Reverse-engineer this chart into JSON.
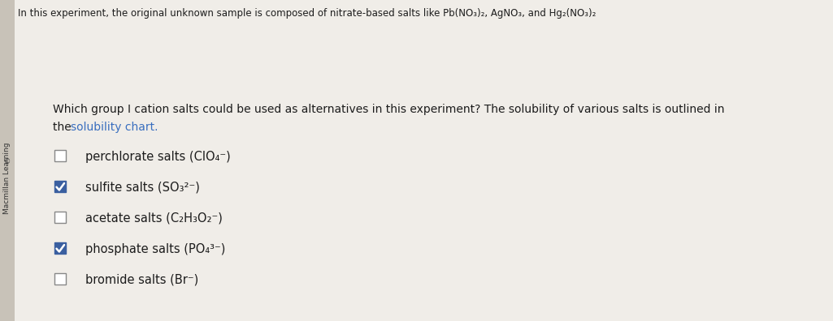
{
  "background_color": "#f0ede8",
  "sidebar_bg": "#c8c2b8",
  "sidebar_text": "Macmillan Learning",
  "top_text": "In this experiment, the original unknown sample is composed of nitrate-based salts like Pb(NO₃)₂, AgNO₃, and Hg₂(NO₃)₂",
  "question_line1": "Which group I cation salts could be used as alternatives in this experiment? The solubility of various salts is outlined in",
  "question_line2_plain": "the ",
  "question_line2_link": "solubility chart.",
  "options": [
    {
      "label": "perchlorate salts (ClO₄⁻)",
      "checked": false
    },
    {
      "label": "sulfite salts (SO₃²⁻)",
      "checked": true
    },
    {
      "label": "acetate salts (C₂H₃O₂⁻)",
      "checked": false
    },
    {
      "label": "phosphate salts (PO₄³⁻)",
      "checked": true
    },
    {
      "label": "bromide salts (Br⁻)",
      "checked": false
    }
  ],
  "text_color": "#1c1c1c",
  "top_text_color": "#1c1c1c",
  "link_color": "#3a6fbf",
  "check_color": "#3a5fa0",
  "check_bg": "#3a5fa0",
  "font_size_top": 8.5,
  "font_size_question": 10.0,
  "font_size_option": 10.5,
  "font_size_sidebar": 6.5
}
